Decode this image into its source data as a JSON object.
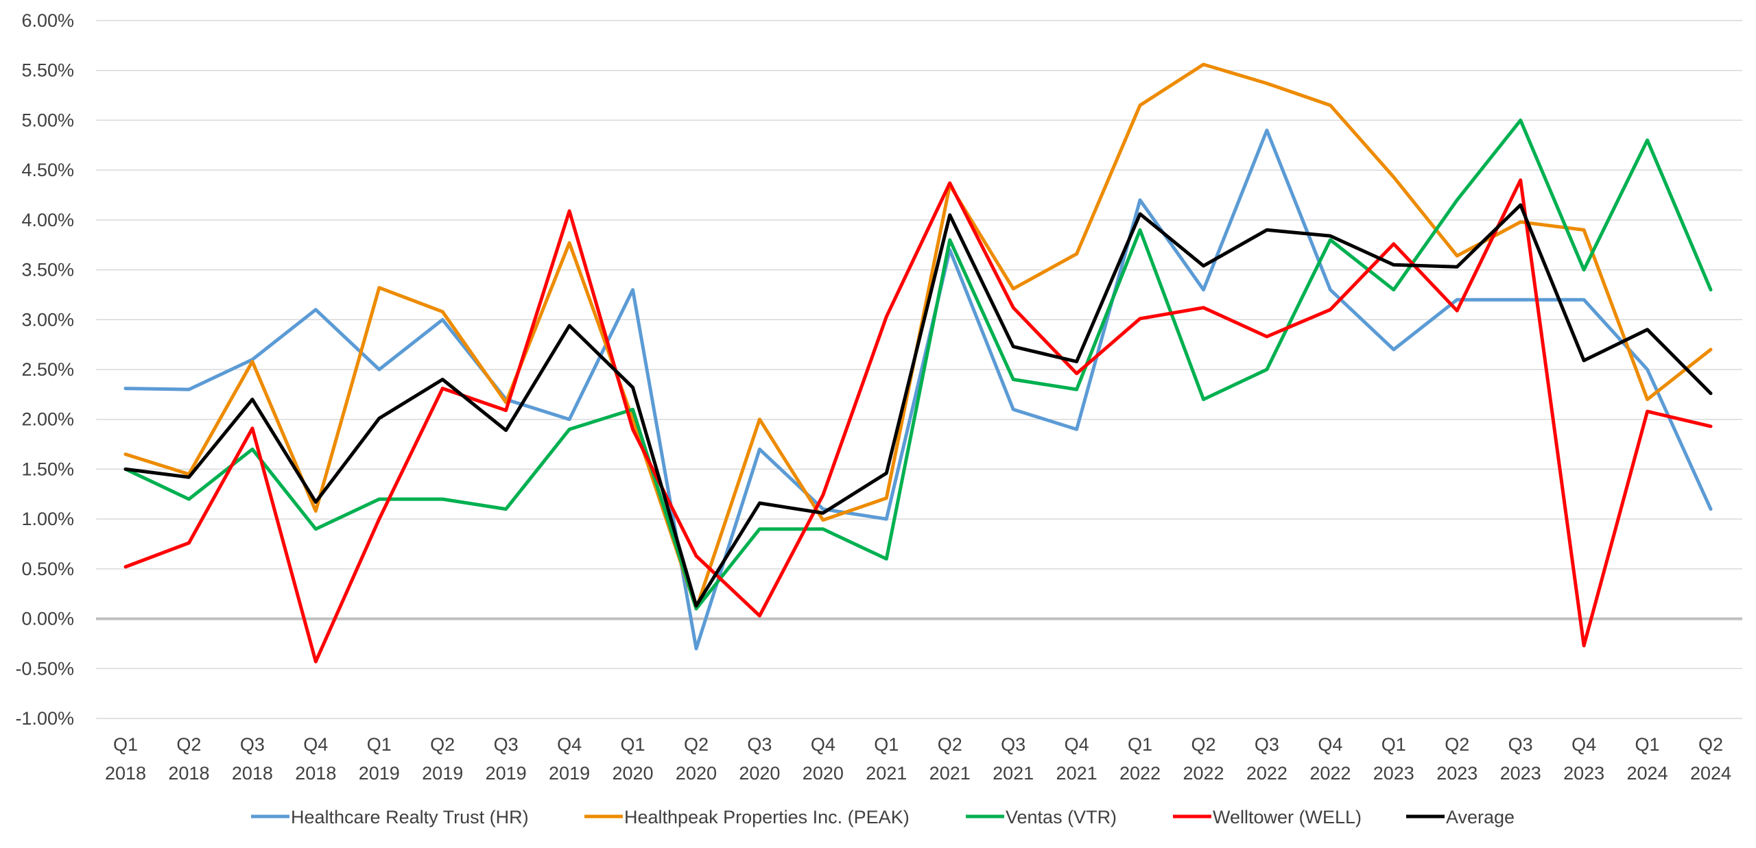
{
  "chart_data": {
    "type": "line",
    "title": "",
    "xlabel": "",
    "ylabel": "",
    "ylim": [
      -1.0,
      6.0
    ],
    "ytick_step": 0.5,
    "y_format": "percent_2dp",
    "grid": true,
    "legend_position": "bottom",
    "categories": [
      [
        "Q1",
        "2018"
      ],
      [
        "Q2",
        "2018"
      ],
      [
        "Q3",
        "2018"
      ],
      [
        "Q4",
        "2018"
      ],
      [
        "Q1",
        "2019"
      ],
      [
        "Q2",
        "2019"
      ],
      [
        "Q3",
        "2019"
      ],
      [
        "Q4",
        "2019"
      ],
      [
        "Q1",
        "2020"
      ],
      [
        "Q2",
        "2020"
      ],
      [
        "Q3",
        "2020"
      ],
      [
        "Q4",
        "2020"
      ],
      [
        "Q1",
        "2021"
      ],
      [
        "Q2",
        "2021"
      ],
      [
        "Q3",
        "2021"
      ],
      [
        "Q4",
        "2021"
      ],
      [
        "Q1",
        "2022"
      ],
      [
        "Q2",
        "2022"
      ],
      [
        "Q3",
        "2022"
      ],
      [
        "Q4",
        "2022"
      ],
      [
        "Q1",
        "2023"
      ],
      [
        "Q2",
        "2023"
      ],
      [
        "Q3",
        "2023"
      ],
      [
        "Q4",
        "2023"
      ],
      [
        "Q1",
        "2024"
      ],
      [
        "Q2",
        "2024"
      ]
    ],
    "series": [
      {
        "name": "Healthcare Realty Trust (HR)",
        "color": "#5B9BD5",
        "values": [
          2.31,
          2.3,
          2.6,
          3.1,
          2.5,
          3.0,
          2.2,
          2.0,
          3.3,
          -0.3,
          1.7,
          1.1,
          1.0,
          3.7,
          2.1,
          1.9,
          4.2,
          3.3,
          4.9,
          3.3,
          2.7,
          3.2,
          3.2,
          3.2,
          2.5,
          1.1
        ]
      },
      {
        "name": "Healthpeak Properties Inc. (PEAK)",
        "color": "#ED8B00",
        "values": [
          1.65,
          1.45,
          2.58,
          1.08,
          3.32,
          3.08,
          2.17,
          3.77,
          2.0,
          0.1,
          2.0,
          0.99,
          1.21,
          4.35,
          3.31,
          3.66,
          5.15,
          5.56,
          5.37,
          5.15,
          4.43,
          3.64,
          3.98,
          3.9,
          2.2,
          2.7
        ]
      },
      {
        "name": "Ventas (VTR)",
        "color": "#00B050",
        "values": [
          1.5,
          1.2,
          1.7,
          0.9,
          1.2,
          1.2,
          1.1,
          1.9,
          2.1,
          0.1,
          0.9,
          0.9,
          0.6,
          3.8,
          2.4,
          2.3,
          3.9,
          2.2,
          2.5,
          3.8,
          3.3,
          4.2,
          5.0,
          3.5,
          4.8,
          3.3
        ]
      },
      {
        "name": "Welltower (WELL)",
        "color": "#FF0000",
        "values": [
          0.52,
          0.76,
          1.91,
          -0.43,
          1.0,
          2.31,
          2.09,
          4.09,
          1.9,
          0.63,
          0.03,
          1.24,
          3.03,
          4.37,
          3.12,
          2.46,
          3.01,
          3.12,
          2.83,
          3.1,
          3.76,
          3.09,
          4.4,
          -0.27,
          2.08,
          1.93
        ]
      },
      {
        "name": "Average",
        "color": "#000000",
        "values": [
          1.5,
          1.42,
          2.2,
          1.17,
          2.01,
          2.4,
          1.89,
          2.94,
          2.32,
          0.13,
          1.16,
          1.06,
          1.46,
          4.05,
          2.73,
          2.58,
          4.06,
          3.54,
          3.9,
          3.84,
          3.55,
          3.53,
          4.15,
          2.59,
          2.9,
          2.26
        ]
      }
    ]
  }
}
